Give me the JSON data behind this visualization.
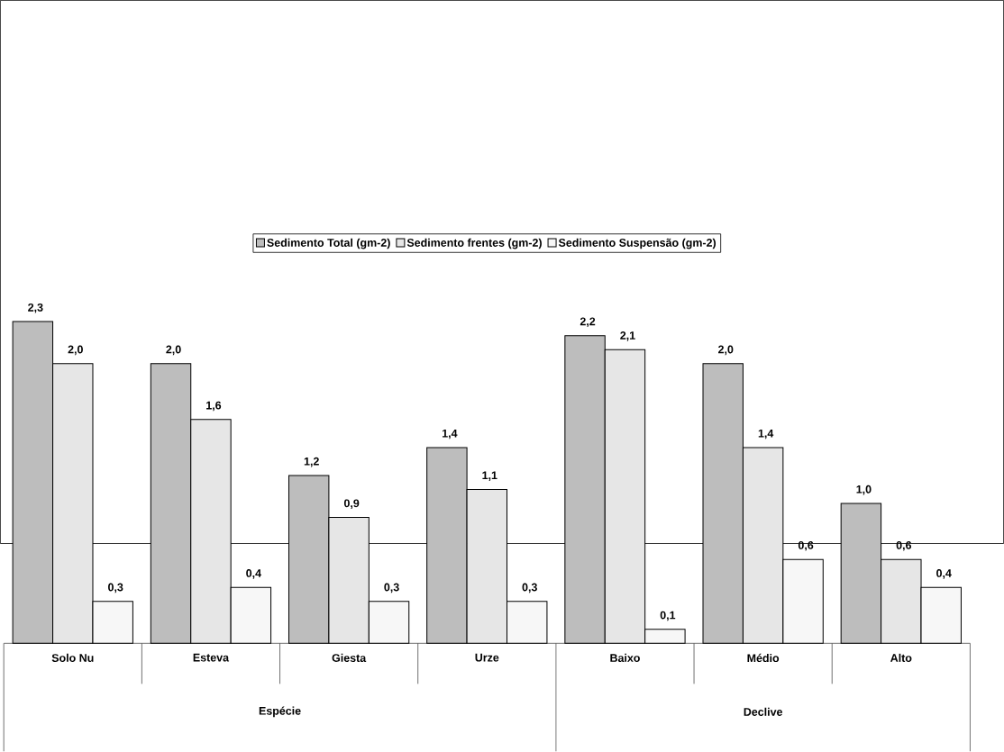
{
  "chart_data": {
    "type": "bar",
    "categories": [
      "Solo Nu",
      "Esteva",
      "Giesta",
      "Urze",
      "Baixo",
      "Médio",
      "Alto"
    ],
    "series": [
      {
        "name": "Sedimento Total (gm-2)",
        "color": "#bdbdbd",
        "values": [
          2.3,
          2.0,
          1.2,
          1.4,
          2.2,
          2.0,
          1.0
        ],
        "value_labels": [
          "2,3",
          "2,0",
          "1,2",
          "1,4",
          "2,2",
          "2,0",
          "1,0"
        ]
      },
      {
        "name": "Sedimento frentes (gm-2)",
        "color": "#e6e6e6",
        "values": [
          2.0,
          1.6,
          0.9,
          1.1,
          2.1,
          1.4,
          0.6
        ],
        "value_labels": [
          "2,0",
          "1,6",
          "0,9",
          "1,1",
          "2,1",
          "1,4",
          "0,6"
        ]
      },
      {
        "name": "Sedimento Suspensão (gm-2)",
        "color": "#f7f7f7",
        "values": [
          0.3,
          0.4,
          0.3,
          0.3,
          0.1,
          0.6,
          0.4
        ],
        "value_labels": [
          "0,3",
          "0,4",
          "0,3",
          "0,3",
          "0,1",
          "0,6",
          "0,4"
        ]
      }
    ],
    "annotations": [
      "Espécie",
      "Declive"
    ],
    "legend": "top",
    "tick_labels": "x",
    "grid": false
  }
}
